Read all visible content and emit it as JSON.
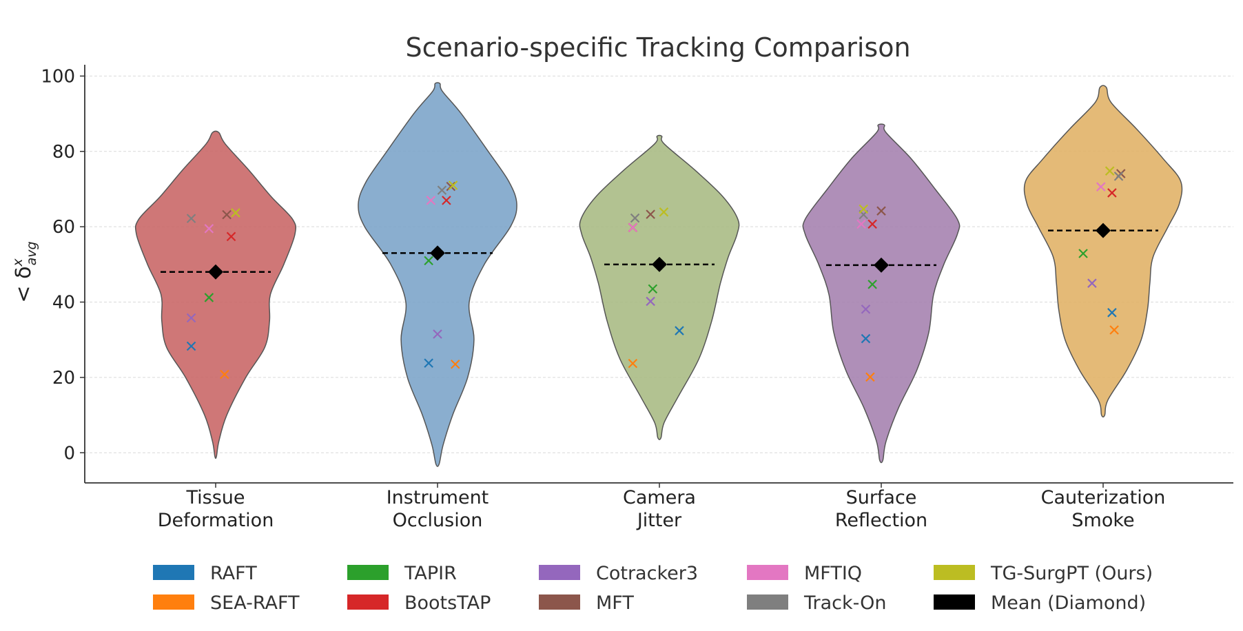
{
  "chart_data": {
    "type": "violin",
    "title": "Scenario-specific Tracking Comparison",
    "xlabel": "",
    "ylabel": "< δ",
    "ylabel_super": "x",
    "ylabel_sub": "avg",
    "ylim": [
      -8,
      103
    ],
    "yticks": [
      0,
      20,
      40,
      60,
      80,
      100
    ],
    "grid": "horizontal",
    "legend_position": "bottom",
    "categories": [
      {
        "line1": "Tissue",
        "line2": "Deformation"
      },
      {
        "line1": "Instrument",
        "line2": "Occlusion"
      },
      {
        "line1": "Camera",
        "line2": "Jitter"
      },
      {
        "line1": "Surface",
        "line2": "Reflection"
      },
      {
        "line1": "Cauterization",
        "line2": "Smoke"
      }
    ],
    "violin_colors": [
      "#c86464",
      "#7aa3c8",
      "#a7ba82",
      "#a47fae",
      "#e0b064"
    ],
    "violins": [
      {
        "min": -1,
        "max": 85,
        "profile": [
          [
            -1,
            0.01
          ],
          [
            3,
            0.04
          ],
          [
            10,
            0.14
          ],
          [
            20,
            0.38
          ],
          [
            28,
            0.62
          ],
          [
            35,
            0.68
          ],
          [
            42,
            0.69
          ],
          [
            50,
            0.86
          ],
          [
            58,
            1.0
          ],
          [
            62,
            0.97
          ],
          [
            68,
            0.7
          ],
          [
            75,
            0.42
          ],
          [
            82,
            0.12
          ],
          [
            85,
            0.04
          ]
        ]
      },
      {
        "min": -3,
        "max": 98,
        "profile": [
          [
            -3,
            0.02
          ],
          [
            2,
            0.07
          ],
          [
            10,
            0.19
          ],
          [
            20,
            0.38
          ],
          [
            30,
            0.46
          ],
          [
            40,
            0.4
          ],
          [
            50,
            0.59
          ],
          [
            60,
            0.92
          ],
          [
            66,
            1.0
          ],
          [
            72,
            0.9
          ],
          [
            80,
            0.64
          ],
          [
            90,
            0.3
          ],
          [
            96,
            0.06
          ],
          [
            98,
            0.03
          ]
        ]
      },
      {
        "min": 4,
        "max": 84,
        "profile": [
          [
            4,
            0.02
          ],
          [
            8,
            0.06
          ],
          [
            15,
            0.24
          ],
          [
            25,
            0.5
          ],
          [
            35,
            0.66
          ],
          [
            45,
            0.77
          ],
          [
            52,
            0.87
          ],
          [
            58,
            0.98
          ],
          [
            62,
            0.99
          ],
          [
            68,
            0.8
          ],
          [
            75,
            0.45
          ],
          [
            82,
            0.06
          ],
          [
            84,
            0.03
          ]
        ]
      },
      {
        "min": -2,
        "max": 87,
        "profile": [
          [
            -2,
            0.02
          ],
          [
            3,
            0.06
          ],
          [
            12,
            0.22
          ],
          [
            22,
            0.45
          ],
          [
            32,
            0.6
          ],
          [
            42,
            0.66
          ],
          [
            50,
            0.79
          ],
          [
            58,
            0.96
          ],
          [
            62,
            0.96
          ],
          [
            70,
            0.68
          ],
          [
            78,
            0.38
          ],
          [
            85,
            0.06
          ],
          [
            87,
            0.04
          ]
        ]
      },
      {
        "min": 10,
        "max": 97,
        "profile": [
          [
            10,
            0.02
          ],
          [
            14,
            0.06
          ],
          [
            22,
            0.3
          ],
          [
            30,
            0.48
          ],
          [
            38,
            0.56
          ],
          [
            45,
            0.59
          ],
          [
            52,
            0.63
          ],
          [
            60,
            0.82
          ],
          [
            66,
            0.96
          ],
          [
            72,
            0.98
          ],
          [
            78,
            0.76
          ],
          [
            86,
            0.42
          ],
          [
            93,
            0.1
          ],
          [
            97,
            0.04
          ]
        ]
      }
    ],
    "means": [
      48,
      53,
      50,
      49.8,
      59
    ],
    "series": [
      {
        "name": "RAFT",
        "color": "#1f77b4",
        "values": [
          28.3,
          23.8,
          32.4,
          30.3,
          37.2
        ]
      },
      {
        "name": "SEA-RAFT",
        "color": "#ff7f0e",
        "values": [
          20.8,
          23.5,
          23.7,
          20.1,
          32.6
        ]
      },
      {
        "name": "TAPIR",
        "color": "#2ca02c",
        "values": [
          41.2,
          51.0,
          43.5,
          44.7,
          52.9
        ]
      },
      {
        "name": "BootsTAP",
        "color": "#d62728",
        "values": [
          57.4,
          67.0,
          59.8,
          60.7,
          69.0
        ]
      },
      {
        "name": "Cotracker3",
        "color": "#9467bd",
        "values": [
          35.8,
          31.5,
          40.2,
          38.1,
          45.0
        ]
      },
      {
        "name": "MFT",
        "color": "#8c564b",
        "values": [
          63.2,
          70.7,
          63.3,
          64.2,
          74.1
        ]
      },
      {
        "name": "MFTIQ",
        "color": "#e377c2",
        "values": [
          59.5,
          67.0,
          59.8,
          60.7,
          70.6
        ]
      },
      {
        "name": "Track-On",
        "color": "#7f7f7f",
        "values": [
          62.2,
          69.7,
          62.3,
          63.2,
          73.4
        ]
      },
      {
        "name": "TG-SurgPT (Ours)",
        "color": "#bcbd22",
        "values": [
          63.7,
          71.0,
          63.9,
          64.7,
          74.8
        ]
      }
    ],
    "marker_offsets": [
      [
        -0.11,
        0.04,
        -0.03,
        0.07,
        -0.11,
        0.05,
        -0.03,
        -0.11,
        0.09
      ],
      [
        -0.04,
        0.08,
        -0.04,
        0.04,
        0.0,
        0.06,
        -0.03,
        0.02,
        0.07
      ],
      [
        0.09,
        -0.12,
        -0.03,
        -0.12,
        -0.04,
        -0.04,
        -0.12,
        -0.11,
        0.02
      ],
      [
        -0.07,
        -0.05,
        -0.04,
        -0.04,
        -0.07,
        0.0,
        -0.09,
        -0.08,
        -0.08
      ],
      [
        0.04,
        0.05,
        -0.09,
        0.04,
        -0.05,
        0.08,
        -0.01,
        0.07,
        0.03
      ]
    ],
    "mean_series": {
      "name": "Mean (Diamond)",
      "color": "#000000"
    }
  }
}
